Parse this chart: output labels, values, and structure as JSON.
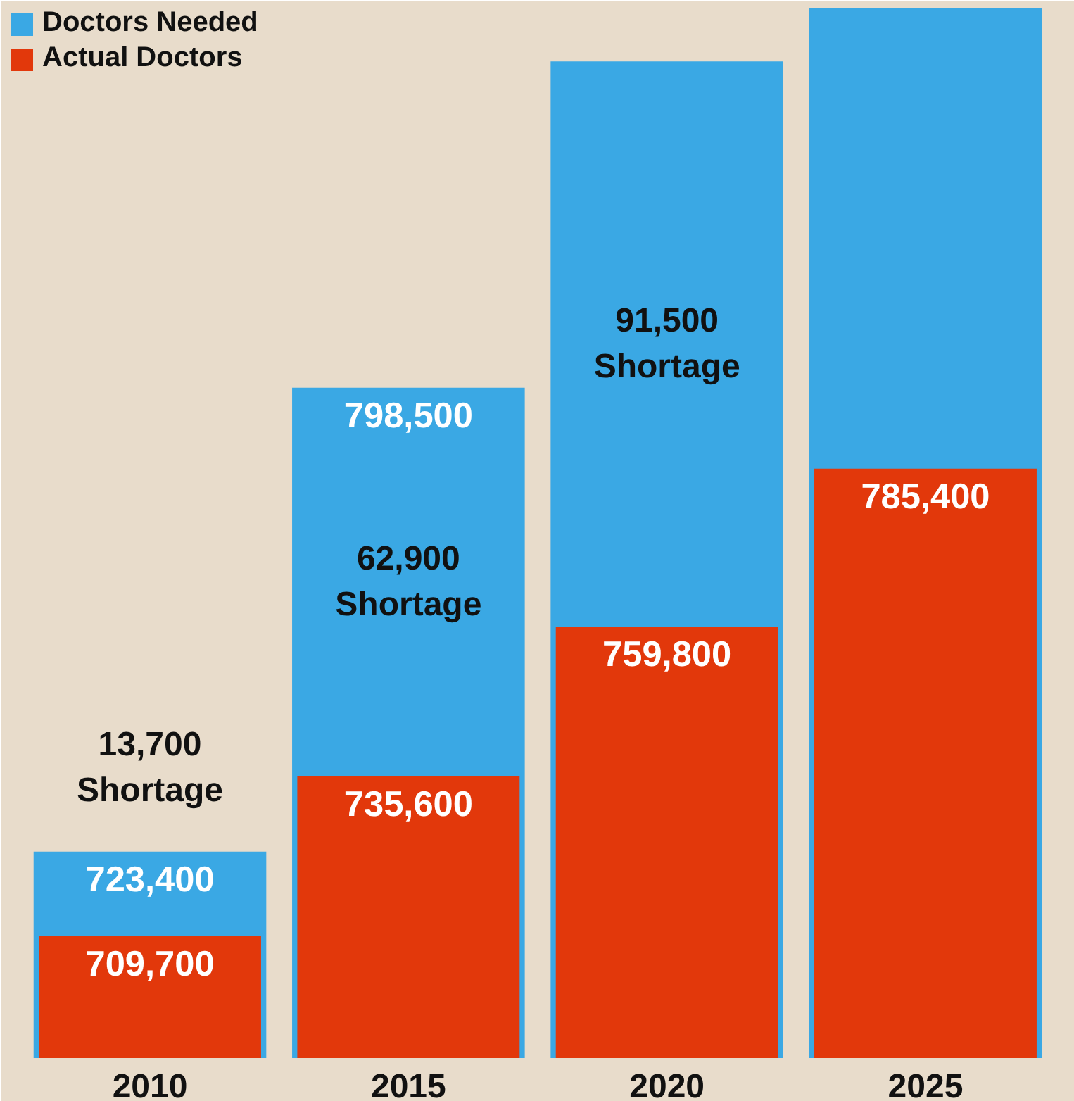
{
  "chart_data": {
    "type": "bar",
    "categories": [
      "2010",
      "2015",
      "2020",
      "2025"
    ],
    "ylim": [
      690000,
      860000
    ],
    "tick_labels": "x",
    "grid": false,
    "legend": "top left",
    "series": [
      {
        "name": "Doctors Needed",
        "color": "#3aa8e4",
        "values": [
          723400,
          798500,
          851300,
          860000
        ],
        "value_labels": [
          "723,400",
          "798,500",
          null,
          null
        ]
      },
      {
        "name": "Actual Doctors",
        "color": "#e2380b",
        "values": [
          709700,
          735600,
          759800,
          785400
        ],
        "value_labels": [
          "709,700",
          "735,600",
          "759,800",
          "785,400"
        ]
      }
    ],
    "annotations": [
      "13,700\nShortage",
      "62,900\nShortage",
      "91,500\nShortage"
    ]
  }
}
